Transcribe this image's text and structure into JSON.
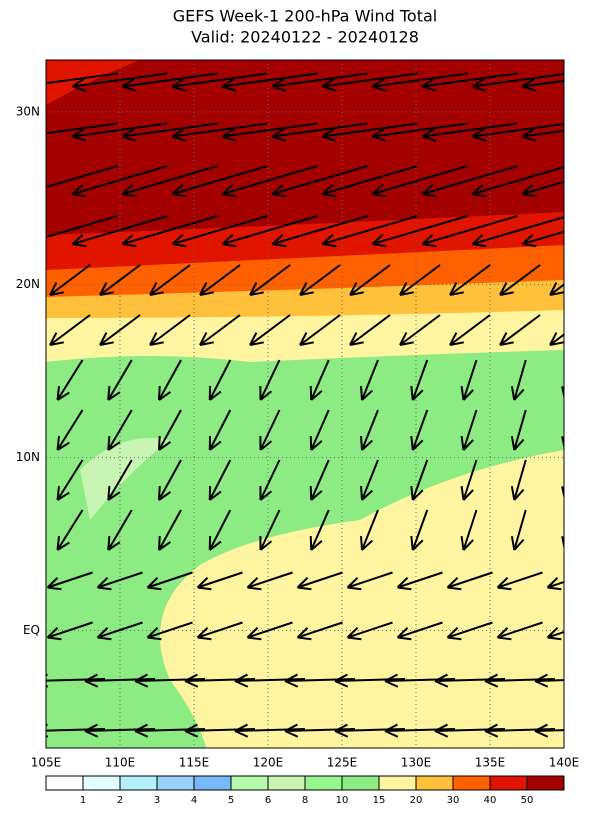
{
  "map": {
    "title": "GEFS Week-1 200-hPa Wind Total",
    "subtitle": "Valid: 20240122 - 20240128",
    "lon_range": [
      105,
      140
    ],
    "lat_range": [
      -6.8,
      33
    ],
    "lon_ticks": [
      {
        "value": 105,
        "label": "105E"
      },
      {
        "value": 110,
        "label": "110E"
      },
      {
        "value": 115,
        "label": "115E"
      },
      {
        "value": 120,
        "label": "120E"
      },
      {
        "value": 125,
        "label": "125E"
      },
      {
        "value": 130,
        "label": "130E"
      },
      {
        "value": 135,
        "label": "135E"
      },
      {
        "value": 140,
        "label": "140E"
      }
    ],
    "lat_ticks": [
      {
        "value": 30,
        "label": "30N"
      },
      {
        "value": 20,
        "label": "20N"
      },
      {
        "value": 10,
        "label": "10N"
      },
      {
        "value": 0,
        "label": "EQ"
      }
    ],
    "colorbar": {
      "levels": [
        1,
        2,
        3,
        4,
        5,
        6,
        8,
        10,
        15,
        20,
        30,
        40,
        50
      ],
      "colors": [
        "#ffffff",
        "#e1ffff",
        "#b4f0fa",
        "#96d2fa",
        "#78b9fa",
        "#b4faaa",
        "#c8f5b4",
        "#96f58c",
        "#8ceb82",
        "#fff5a0",
        "#ffc03c",
        "#ff6000",
        "#e11400",
        "#a50000"
      ]
    }
  }
}
